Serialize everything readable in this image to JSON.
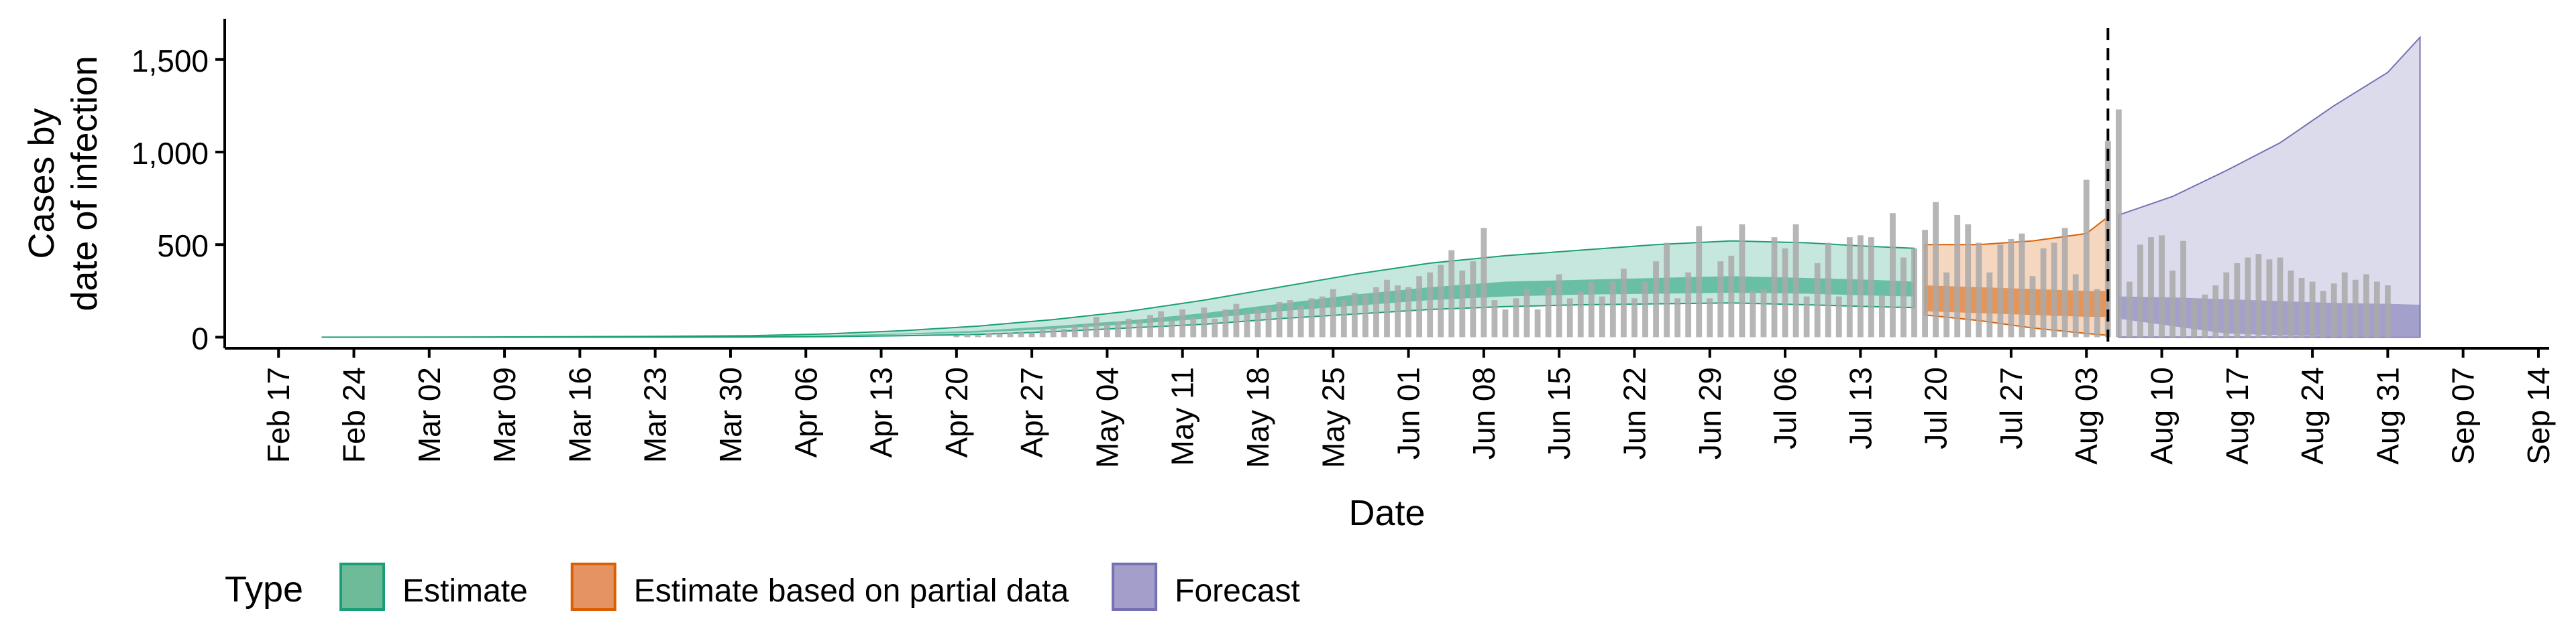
{
  "chart_data": {
    "type": "area",
    "xlabel": "Date",
    "ylabel": "Cases by\ndate of infection",
    "ylim": [
      -60,
      1720
    ],
    "y_ticks": [
      0,
      500,
      1000,
      1500
    ],
    "y_tick_labels": [
      "0",
      "500",
      "1,000",
      "1,500"
    ],
    "x_range": [
      "2020-02-12",
      "2020-09-15"
    ],
    "x_ticks": [
      "2020-02-17",
      "2020-02-24",
      "2020-03-02",
      "2020-03-09",
      "2020-03-16",
      "2020-03-23",
      "2020-03-30",
      "2020-04-06",
      "2020-04-13",
      "2020-04-20",
      "2020-04-27",
      "2020-05-04",
      "2020-05-11",
      "2020-05-18",
      "2020-05-25",
      "2020-06-01",
      "2020-06-08",
      "2020-06-15",
      "2020-06-22",
      "2020-06-29",
      "2020-07-06",
      "2020-07-13",
      "2020-07-20",
      "2020-07-27",
      "2020-08-03",
      "2020-08-10",
      "2020-08-17",
      "2020-08-24",
      "2020-08-31",
      "2020-09-07",
      "2020-09-14"
    ],
    "x_tick_labels": [
      "Feb 17",
      "Feb 24",
      "Mar 02",
      "Mar 09",
      "Mar 16",
      "Mar 23",
      "Mar 30",
      "Apr 06",
      "Apr 13",
      "Apr 20",
      "Apr 27",
      "May 04",
      "May 11",
      "May 18",
      "May 25",
      "Jun 01",
      "Jun 08",
      "Jun 15",
      "Jun 22",
      "Jun 29",
      "Jul 06",
      "Jul 13",
      "Jul 20",
      "Jul 27",
      "Aug 03",
      "Aug 10",
      "Aug 17",
      "Aug 24",
      "Aug 31",
      "Sep 07",
      "Sep 14"
    ],
    "vline_date": "2020-08-05",
    "legend": {
      "title": "Type",
      "position": "bottom",
      "items": [
        {
          "label": "Estimate",
          "fill": "#6dbb98",
          "stroke": "#1b9e77"
        },
        {
          "label": "Estimate based on partial data",
          "fill": "#e69364",
          "stroke": "#d95f02"
        },
        {
          "label": "Forecast",
          "fill": "#a49ecb",
          "stroke": "#7570b3"
        }
      ]
    },
    "colors": {
      "estimate": "#1b9e77",
      "partial": "#d95f02",
      "forecast": "#7570b3",
      "bars": "#a9a9a9"
    },
    "series": [
      {
        "type_label": "Estimate",
        "x": [
          "2020-02-21",
          "2020-03-07",
          "2020-03-22",
          "2020-04-01",
          "2020-04-08",
          "2020-04-15",
          "2020-04-22",
          "2020-04-29",
          "2020-05-06",
          "2020-05-13",
          "2020-05-20",
          "2020-05-27",
          "2020-06-03",
          "2020-06-10",
          "2020-06-17",
          "2020-06-24",
          "2020-07-01",
          "2020-07-08",
          "2020-07-14",
          "2020-07-18"
        ],
        "outer_upper": [
          0,
          1,
          4,
          8,
          18,
          35,
          60,
          95,
          140,
          200,
          270,
          340,
          400,
          440,
          470,
          500,
          520,
          510,
          490,
          480
        ],
        "inner_upper": [
          0,
          0,
          2,
          5,
          10,
          20,
          35,
          60,
          90,
          130,
          180,
          230,
          270,
          300,
          310,
          320,
          330,
          320,
          310,
          300
        ],
        "inner_lower": [
          0,
          0,
          1,
          3,
          7,
          14,
          25,
          45,
          70,
          100,
          140,
          170,
          200,
          220,
          230,
          235,
          240,
          235,
          225,
          220
        ],
        "outer_lower": [
          0,
          0,
          0,
          1,
          3,
          8,
          15,
          30,
          50,
          70,
          100,
          125,
          150,
          165,
          175,
          180,
          185,
          175,
          165,
          160
        ]
      },
      {
        "type_label": "Estimate based on partial data",
        "x": [
          "2020-07-19",
          "2020-07-24",
          "2020-07-29",
          "2020-08-03",
          "2020-08-05"
        ],
        "outer_upper": [
          500,
          500,
          520,
          560,
          650
        ],
        "inner_upper": [
          280,
          270,
          260,
          250,
          250
        ],
        "inner_lower": [
          140,
          130,
          120,
          110,
          110
        ],
        "outer_lower": [
          120,
          90,
          50,
          20,
          10
        ]
      },
      {
        "type_label": "Forecast",
        "x": [
          "2020-08-06",
          "2020-08-11",
          "2020-08-16",
          "2020-08-21",
          "2020-08-26",
          "2020-08-31",
          "2020-09-03"
        ],
        "outer_upper": [
          660,
          760,
          900,
          1050,
          1250,
          1430,
          1620
        ],
        "inner_upper": [
          220,
          215,
          205,
          195,
          185,
          180,
          175
        ],
        "inner_lower": [
          100,
          60,
          20,
          10,
          5,
          5,
          5
        ],
        "outer_lower": [
          0,
          0,
          0,
          0,
          0,
          0,
          0
        ]
      }
    ],
    "bars": {
      "date_start": "2020-04-20",
      "values": [
        10,
        15,
        10,
        20,
        20,
        25,
        30,
        25,
        40,
        50,
        45,
        60,
        70,
        110,
        70,
        85,
        100,
        90,
        120,
        140,
        90,
        150,
        110,
        160,
        100,
        150,
        180,
        130,
        150,
        160,
        190,
        200,
        170,
        210,
        220,
        260,
        200,
        240,
        230,
        270,
        310,
        280,
        270,
        330,
        350,
        390,
        470,
        360,
        410,
        590,
        200,
        150,
        210,
        260,
        150,
        270,
        340,
        210,
        250,
        300,
        220,
        300,
        370,
        210,
        300,
        410,
        510,
        210,
        350,
        600,
        210,
        410,
        440,
        610,
        250,
        260,
        540,
        480,
        610,
        220,
        400,
        510,
        220,
        540,
        550,
        540,
        230,
        670,
        430,
        480,
        580,
        730,
        350,
        660,
        610,
        510,
        350,
        500,
        530,
        560,
        330,
        480,
        510,
        590,
        340,
        850,
        260,
        1060,
        1230,
        300,
        500,
        540,
        550,
        360,
        520,
        210,
        230,
        280,
        350,
        400,
        430,
        450,
        420,
        430,
        360,
        320,
        300,
        250,
        290,
        350,
        310,
        340,
        300,
        280
      ]
    }
  }
}
